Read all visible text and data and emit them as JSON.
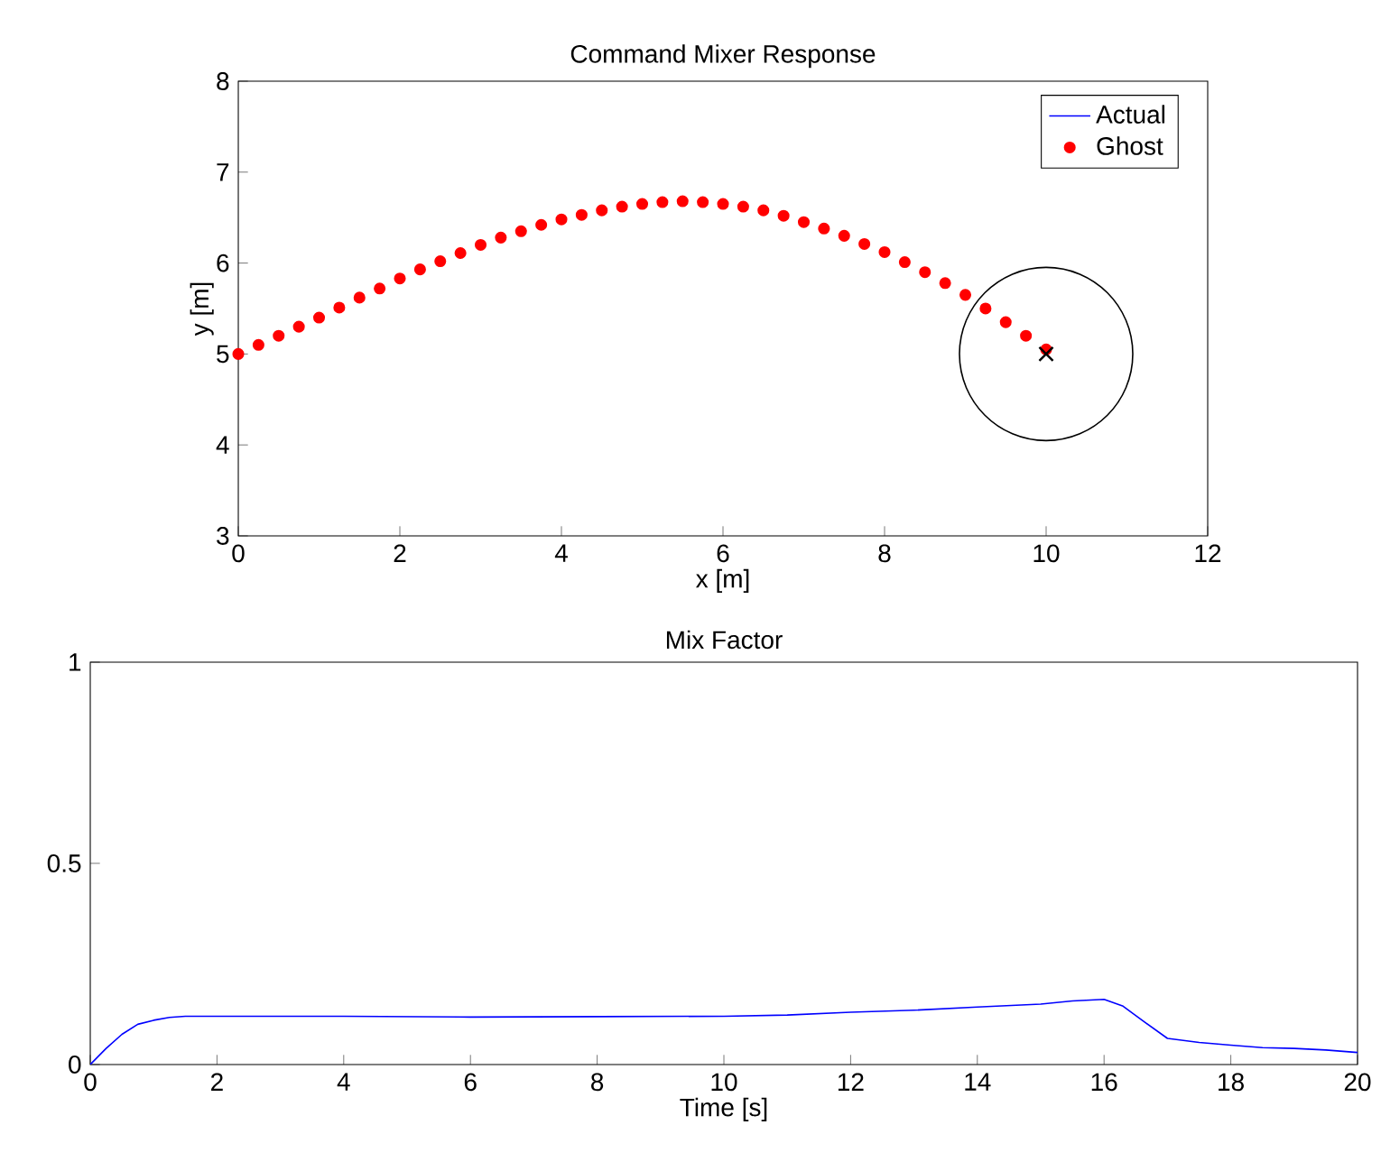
{
  "chart_data": [
    {
      "type": "line",
      "title": "Command Mixer Response",
      "xlabel": "x [m]",
      "ylabel": "y [m]",
      "xlim": [
        0,
        12
      ],
      "ylim": [
        3,
        8
      ],
      "xticks": [
        0,
        2,
        4,
        6,
        8,
        10,
        12
      ],
      "yticks": [
        3,
        4,
        5,
        6,
        7,
        8
      ],
      "legend": "top right",
      "series": [
        {
          "name": "Actual",
          "type": "line",
          "color": "#0000ff"
        },
        {
          "name": "Ghost",
          "type": "scatter",
          "marker": "circle",
          "color": "#ff0000",
          "x": [
            0,
            0.25,
            0.5,
            0.75,
            1,
            1.25,
            1.5,
            1.75,
            2,
            2.25,
            2.5,
            2.75,
            3,
            3.25,
            3.5,
            3.75,
            4,
            4.25,
            4.5,
            4.75,
            5,
            5.25,
            5.5,
            5.75,
            6,
            6.25,
            6.5,
            6.75,
            7,
            7.25,
            7.5,
            7.75,
            8,
            8.25,
            8.5,
            8.75,
            9,
            9.25,
            9.5,
            9.75,
            10
          ],
          "values": [
            5.0,
            5.1,
            5.2,
            5.3,
            5.4,
            5.51,
            5.62,
            5.72,
            5.83,
            5.93,
            6.02,
            6.11,
            6.2,
            6.28,
            6.35,
            6.42,
            6.48,
            6.53,
            6.58,
            6.62,
            6.65,
            6.67,
            6.68,
            6.67,
            6.65,
            6.62,
            6.58,
            6.52,
            6.45,
            6.38,
            6.3,
            6.21,
            6.12,
            6.01,
            5.9,
            5.78,
            5.65,
            5.5,
            5.35,
            5.2,
            5.05
          ]
        },
        {
          "type": "scatter",
          "marker": "cross",
          "color": "#000000",
          "x": [
            10
          ],
          "values": [
            5
          ]
        }
      ]
    },
    {
      "type": "line",
      "title": "Mix Factor",
      "xlabel": "Time [s]",
      "xlim": [
        0,
        20
      ],
      "ylim": [
        0,
        1
      ],
      "xticks": [
        0,
        2,
        4,
        6,
        8,
        10,
        12,
        14,
        16,
        18,
        20
      ],
      "yticks": [
        0,
        0.5,
        1
      ],
      "series": [
        {
          "color": "#0000ff",
          "x": [
            0,
            0.25,
            0.5,
            0.75,
            1,
            1.25,
            1.5,
            2,
            4,
            6,
            8,
            10,
            11,
            12,
            13,
            14,
            15,
            15.5,
            16,
            16.3,
            16.6,
            17,
            17.5,
            18,
            18.5,
            19,
            19.5,
            20
          ],
          "values": [
            0,
            0.04,
            0.075,
            0.1,
            0.11,
            0.117,
            0.12,
            0.12,
            0.12,
            0.118,
            0.119,
            0.12,
            0.123,
            0.13,
            0.135,
            0.143,
            0.15,
            0.158,
            0.162,
            0.145,
            0.11,
            0.065,
            0.055,
            0.048,
            0.042,
            0.04,
            0.036,
            0.03
          ]
        }
      ]
    }
  ]
}
